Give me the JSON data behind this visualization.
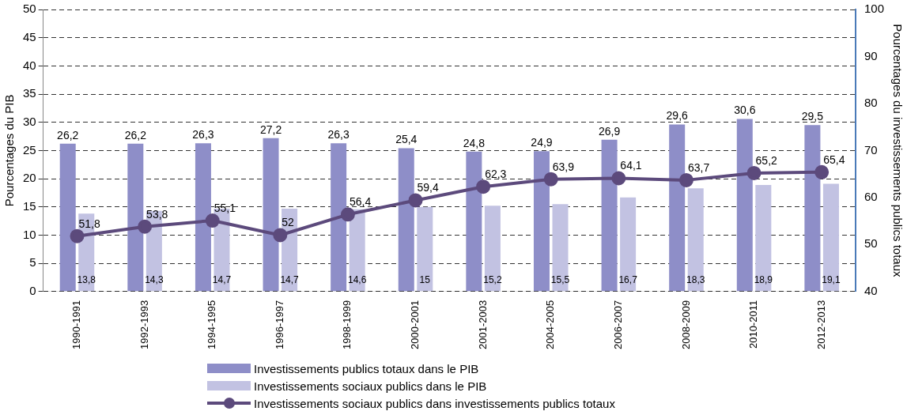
{
  "chart_data": {
    "type": "bar",
    "categories": [
      "1990-1991",
      "1992-1993",
      "1994-1995",
      "1996-1997",
      "1998-1999",
      "2000-2001",
      "2001-2003",
      "2004-2005",
      "2006-2007",
      "2008-2009",
      "2010-2011",
      "2012-2013"
    ],
    "series": [
      {
        "name": "Investissements publics totaux dans le PIB",
        "color": "#8e8ec8",
        "values": [
          26.2,
          26.2,
          26.3,
          27.2,
          26.3,
          25.4,
          24.8,
          24.9,
          26.9,
          29.6,
          30.6,
          29.5
        ],
        "value_labels": [
          "26,2",
          "26,2",
          "26,3",
          "27,2",
          "26,3",
          "25,4",
          "24,8",
          "24,9",
          "26,9",
          "29,6",
          "30,6",
          "29,5"
        ]
      },
      {
        "name": "Investissements sociaux publics dans le PIB",
        "color": "#c2c2e2",
        "values": [
          13.8,
          14.3,
          14.7,
          14.7,
          14.6,
          15,
          15.2,
          15.5,
          16.7,
          18.3,
          18.9,
          19.1
        ],
        "value_labels": [
          "13,8",
          "14,3",
          "14,7",
          "14,7",
          "14,6",
          "15",
          "15,2",
          "15,5",
          "16,7",
          "18,3",
          "18,9",
          "19,1"
        ]
      },
      {
        "name": "Investissements sociaux publics dans investissements publics totaux",
        "type": "line",
        "axis": "y2",
        "color": "#5c4a7c",
        "values": [
          51.8,
          53.8,
          55.1,
          52,
          56.4,
          59.4,
          62.3,
          63.9,
          64.1,
          63.7,
          65.2,
          65.4
        ],
        "value_labels": [
          "51,8",
          "53,8",
          "55,1",
          "52",
          "56,4",
          "59,4",
          "62,3",
          "63,9",
          "64,1",
          "63,7",
          "65,2",
          "65,4"
        ]
      }
    ],
    "ylabel": "Pourcentages du PIB",
    "y2label": "Pourcentages du investissements publics totaux",
    "ylim": [
      0,
      50
    ],
    "yticks": [
      0,
      5,
      10,
      15,
      20,
      25,
      30,
      35,
      40,
      45,
      50
    ],
    "y2lim": [
      40,
      100
    ],
    "y2ticks": [
      40,
      50,
      60,
      70,
      80,
      90,
      100
    ],
    "grid": "y",
    "legend": "bottom",
    "marker": "circle"
  }
}
